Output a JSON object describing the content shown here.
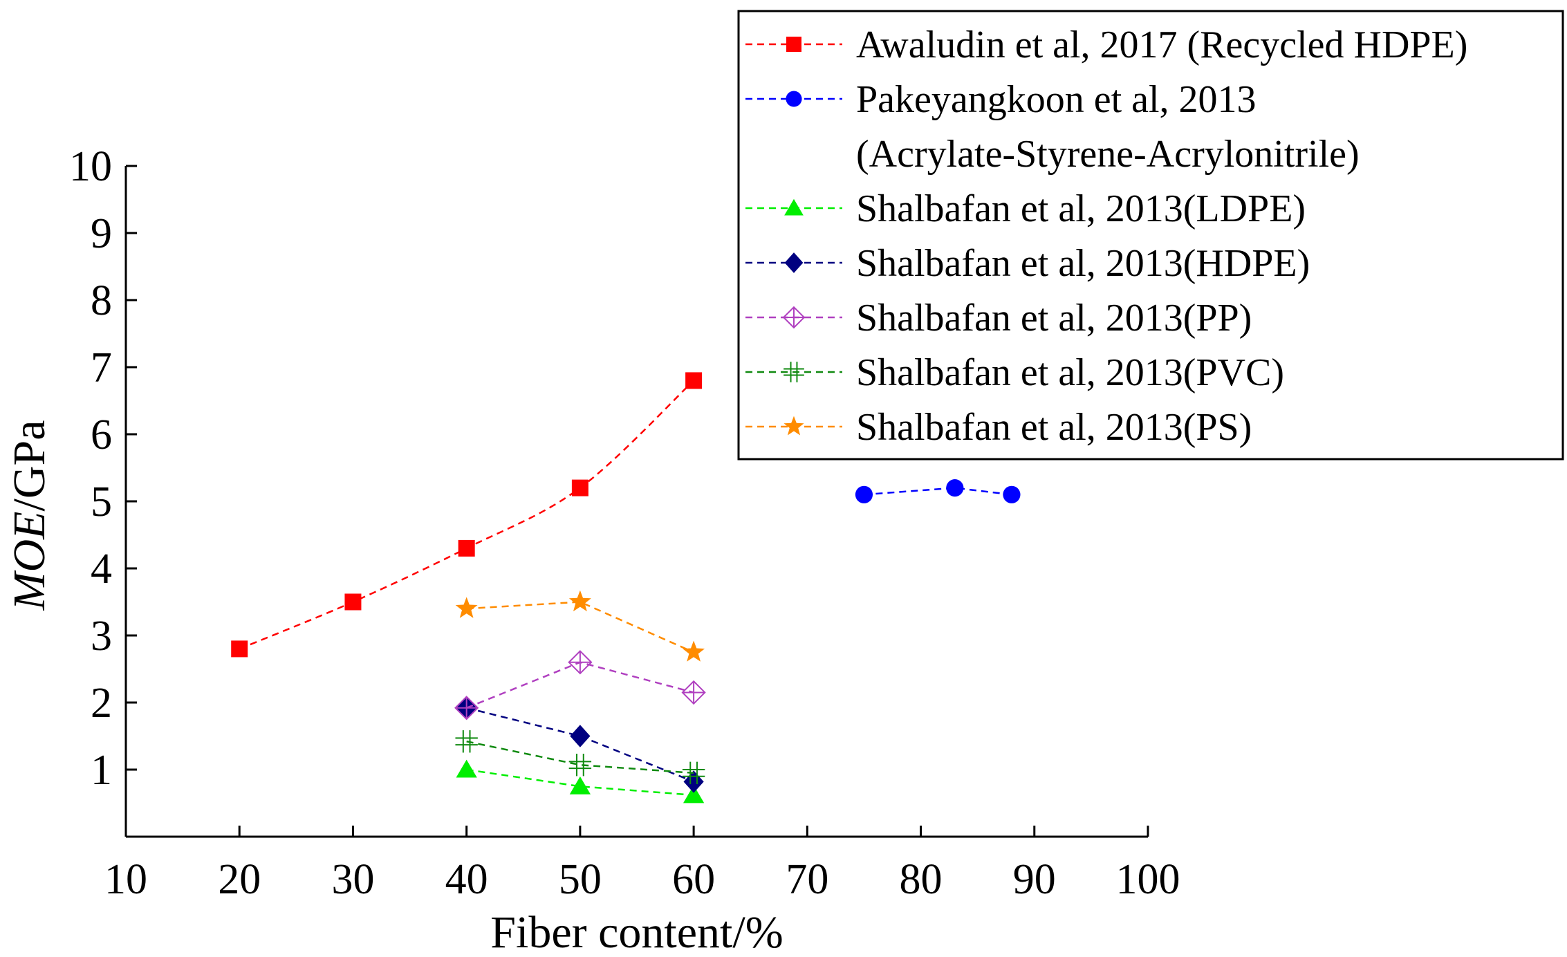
{
  "chart_data": {
    "type": "scatter",
    "title": "",
    "xlabel": "Fiber content/%",
    "ylabel_italic": "MOE",
    "ylabel_unit": "/GPa",
    "xlim": [
      10,
      100
    ],
    "ylim": [
      0,
      10
    ],
    "xticks": [
      10,
      20,
      30,
      40,
      50,
      60,
      70,
      80,
      90,
      100
    ],
    "yticks": [
      1,
      2,
      3,
      4,
      5,
      6,
      7,
      8,
      9,
      10
    ],
    "grid": false,
    "legend_position": "top-right",
    "series": [
      {
        "name": "Awaludin et al, 2017 (Recycled HDPE)",
        "color": "#ff0000",
        "marker": "square",
        "x": [
          20,
          30,
          40,
          50,
          60
        ],
        "y": [
          2.8,
          3.5,
          4.3,
          5.2,
          6.8
        ]
      },
      {
        "name": "Pakeyangkoon et al, 2013",
        "name_line2": "(Acrylate-Styrene-Acrylonitrile)",
        "color": "#0000ff",
        "marker": "circle",
        "x": [
          75,
          83,
          88
        ],
        "y": [
          5.1,
          5.2,
          5.1
        ]
      },
      {
        "name": "Shalbafan et al, 2013(LDPE)",
        "color": "#00ee00",
        "marker": "triangle",
        "x": [
          40,
          50,
          60
        ],
        "y": [
          1.0,
          0.75,
          0.62
        ]
      },
      {
        "name": "Shalbafan et al, 2013(HDPE)",
        "color": "#000080",
        "marker": "diamond",
        "x": [
          40,
          50,
          60
        ],
        "y": [
          1.92,
          1.5,
          0.82
        ]
      },
      {
        "name": "Shalbafan et al, 2013(PP)",
        "color": "#b040c0",
        "marker": "diamond-plus",
        "x": [
          40,
          50,
          60
        ],
        "y": [
          1.92,
          2.6,
          2.15
        ]
      },
      {
        "name": "Shalbafan et al, 2013(PVC)",
        "color": "#108a10",
        "marker": "double-plus",
        "x": [
          40,
          50,
          60
        ],
        "y": [
          1.42,
          1.07,
          0.95
        ]
      },
      {
        "name": "Shalbafan et al, 2013(PS)",
        "color": "#ff8c00",
        "marker": "star",
        "x": [
          40,
          50,
          60
        ],
        "y": [
          3.4,
          3.5,
          2.75
        ]
      }
    ]
  }
}
